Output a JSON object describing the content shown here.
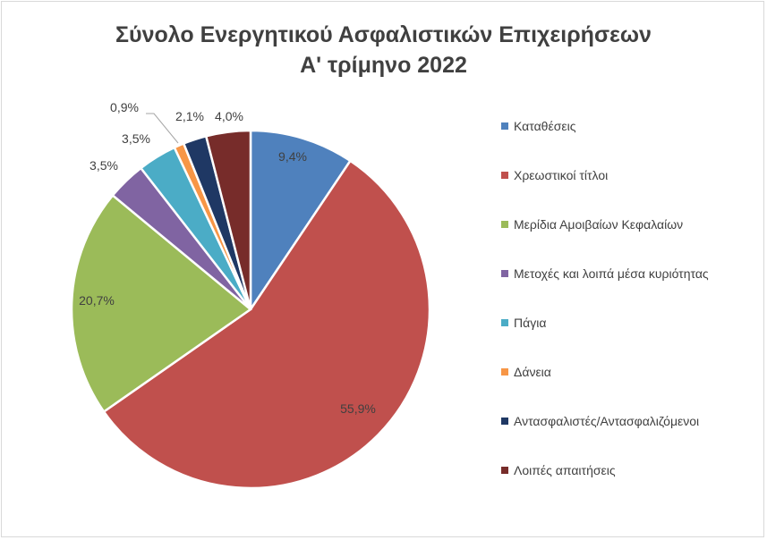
{
  "chart_data": {
    "type": "pie",
    "title_line1": "Σύνολο Ενεργητικού Ασφαλιστικών Επιχειρήσεων",
    "title_line2": "Α' τρίμηνο 2022",
    "legend_position": "right",
    "slices": [
      {
        "name": "Καταθέσεις",
        "value": 9.4,
        "label": "9,4%",
        "color": "#4f81bd"
      },
      {
        "name": "Χρεωστικοί τίτλοι",
        "value": 55.9,
        "label": "55,9%",
        "color": "#c0504d"
      },
      {
        "name": "Μερίδια Αμοιβαίων Κεφαλαίων",
        "value": 20.7,
        "label": "20,7%",
        "color": "#9bbb59"
      },
      {
        "name": "Μετοχές και λοιπά μέσα κυριότητας",
        "value": 3.5,
        "label": "3,5%",
        "color": "#8064a2"
      },
      {
        "name": "Πάγια",
        "value": 3.5,
        "label": "3,5%",
        "color": "#4bacc6"
      },
      {
        "name": "Δάνεια",
        "value": 0.9,
        "label": "0,9%",
        "color": "#f79646"
      },
      {
        "name": "Αντασφαλιστές/Αντασφαλιζόμενοι",
        "value": 2.1,
        "label": "2,1%",
        "color": "#1f3864"
      },
      {
        "name": "Λοιπές απαιτήσεις",
        "value": 4.0,
        "label": "4,0%",
        "color": "#772c2a"
      }
    ]
  }
}
